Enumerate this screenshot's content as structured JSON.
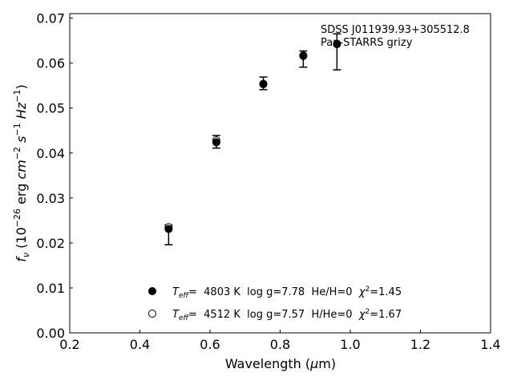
{
  "chart_data": {
    "type": "scatter",
    "title": "",
    "xlabel_prefix": "Wavelength (",
    "xlabel_mu": "μ",
    "xlabel_suffix": "m)",
    "ylabel": "f_ν (10^-26 erg cm^-2 s^-1 Hz^-1)",
    "xlim": [
      0.2,
      1.4
    ],
    "ylim": [
      0.0,
      0.071
    ],
    "x_ticks": [
      "0.2",
      "0.4",
      "0.6",
      "0.8",
      "1.0",
      "1.2",
      "1.4"
    ],
    "y_ticks": [
      "0.00",
      "0.01",
      "0.02",
      "0.03",
      "0.04",
      "0.05",
      "0.06",
      "0.07"
    ],
    "grid": false,
    "annotation": [
      "SDSS J011939.93+305512.8",
      "Pan-STARRS grizy"
    ],
    "observed": {
      "x": [
        0.482,
        0.618,
        0.752,
        0.866,
        0.962
      ],
      "y": [
        0.0218,
        0.0425,
        0.0555,
        0.0609,
        0.0625
      ],
      "yerr": [
        0.0022,
        0.0014,
        0.0014,
        0.0018,
        0.004
      ]
    },
    "series": [
      {
        "marker": "filled",
        "label_teff_prefix": "T",
        "label_teff_sub": "eff",
        "label_eq": "=  4803 K  log g=7.78  He/H=0  ",
        "label_chi": "χ",
        "label_chi_sup": "2",
        "label_chi_val": "=1.45",
        "x": [
          0.482,
          0.618,
          0.752,
          0.866,
          0.962
        ],
        "y": [
          0.0231,
          0.0424,
          0.0553,
          0.0617,
          0.0643
        ]
      },
      {
        "marker": "open",
        "label_teff_prefix": "T",
        "label_teff_sub": "eff",
        "label_eq": "=  4512 K  log g=7.57  H/He=0  ",
        "label_chi": "χ",
        "label_chi_sup": "2",
        "label_chi_val": "=1.67",
        "x": [
          0.482,
          0.618,
          0.752,
          0.866,
          0.962
        ],
        "y": [
          0.0235,
          0.0428,
          0.0554,
          0.0616,
          0.0642
        ]
      }
    ],
    "legend_position": "lower-center",
    "colors": {
      "marker": "#000000",
      "axis": "#000000",
      "background": "#ffffff"
    }
  }
}
